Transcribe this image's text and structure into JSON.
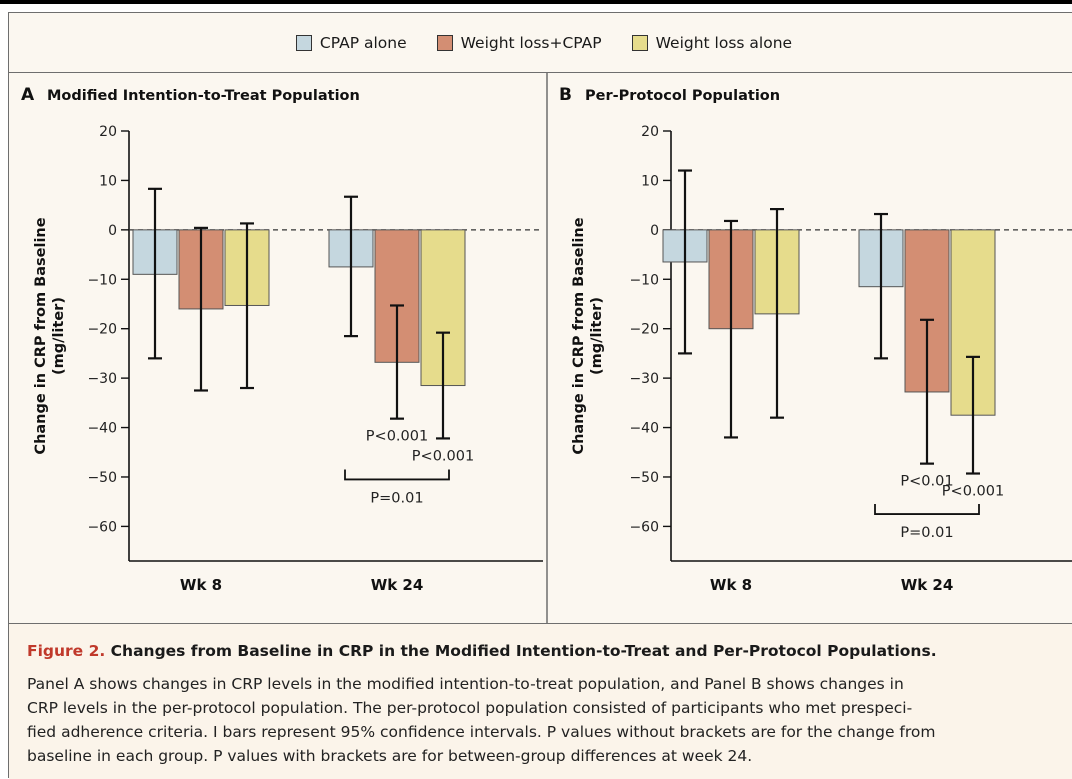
{
  "legend": [
    {
      "label": "CPAP alone",
      "color": "#c5d7df"
    },
    {
      "label": "Weight loss+CPAP",
      "color": "#d38e73"
    },
    {
      "label": "Weight loss alone",
      "color": "#e6dc8c"
    }
  ],
  "chart_data": [
    {
      "type": "bar",
      "panel_letter": "A",
      "title": "Modified Intention-to-Treat Population",
      "ylabel": "Change in CRP from Baseline (mg/liter)",
      "ylim": [
        -67,
        20
      ],
      "yticks": [
        20,
        10,
        0,
        -10,
        -20,
        -30,
        -40,
        -50,
        -60
      ],
      "ytick_labels": [
        "20",
        "10",
        "0",
        "−10",
        "−20",
        "−30",
        "−40",
        "−50",
        "−60"
      ],
      "categories": [
        "Wk 8",
        "Wk 24"
      ],
      "series": [
        {
          "name": "CPAP alone",
          "values": [
            -9.0,
            -7.5
          ],
          "ci_low": [
            -26,
            -21.5
          ],
          "ci_high": [
            8.3,
            6.7
          ]
        },
        {
          "name": "Weight loss+CPAP",
          "values": [
            -16.0,
            -26.8
          ],
          "ci_low": [
            -32.5,
            -38.2
          ],
          "ci_high": [
            0.4,
            -15.3
          ]
        },
        {
          "name": "Weight loss alone",
          "values": [
            -15.3,
            -31.5
          ],
          "ci_low": [
            -32,
            -42.2
          ],
          "ci_high": [
            1.3,
            -20.8
          ]
        }
      ],
      "annotations": [
        {
          "text": "P<0.001",
          "category": 1,
          "series": 1
        },
        {
          "text": "P<0.001",
          "category": 1,
          "series": 2
        },
        {
          "text": "P=0.01",
          "bracket": true,
          "y": -50.5
        }
      ]
    },
    {
      "type": "bar",
      "panel_letter": "B",
      "title": "Per-Protocol Population",
      "ylabel": "Change in CRP from Baseline (mg/liter)",
      "ylim": [
        -67,
        20
      ],
      "yticks": [
        20,
        10,
        0,
        -10,
        -20,
        -30,
        -40,
        -50,
        -60
      ],
      "ytick_labels": [
        "20",
        "10",
        "0",
        "−10",
        "−20",
        "−30",
        "−40",
        "−50",
        "−60"
      ],
      "categories": [
        "Wk 8",
        "Wk 24"
      ],
      "series": [
        {
          "name": "CPAP alone",
          "values": [
            -6.5,
            -11.5
          ],
          "ci_low": [
            -25,
            -26
          ],
          "ci_high": [
            12,
            3.2
          ]
        },
        {
          "name": "Weight loss+CPAP",
          "values": [
            -20.0,
            -32.8
          ],
          "ci_low": [
            -42,
            -47.3
          ],
          "ci_high": [
            1.8,
            -18.2
          ]
        },
        {
          "name": "Weight loss alone",
          "values": [
            -17.0,
            -37.5
          ],
          "ci_low": [
            -38,
            -49.3
          ],
          "ci_high": [
            4.2,
            -25.7
          ]
        }
      ],
      "annotations": [
        {
          "text": "P<0.01",
          "category": 1,
          "series": 1
        },
        {
          "text": "P<0.001",
          "category": 1,
          "series": 2
        },
        {
          "text": "P=0.01",
          "bracket": true,
          "y": -57.5
        }
      ]
    }
  ],
  "caption": {
    "label": "Figure 2.",
    "title": "Changes from Baseline in CRP in the Modified Intention-to-Treat and Per-Protocol Populations.",
    "lines": [
      "Panel A shows changes in CRP levels in the modified intention-to-treat population, and Panel B shows changes in",
      "CRP levels in the per-protocol population. The per-protocol population consisted of participants who met prespeci-",
      "fied adherence criteria. I bars represent 95% confidence intervals. P values without brackets are for the change from",
      "baseline in each group. P values with brackets are for between-group differences at week 24."
    ]
  }
}
